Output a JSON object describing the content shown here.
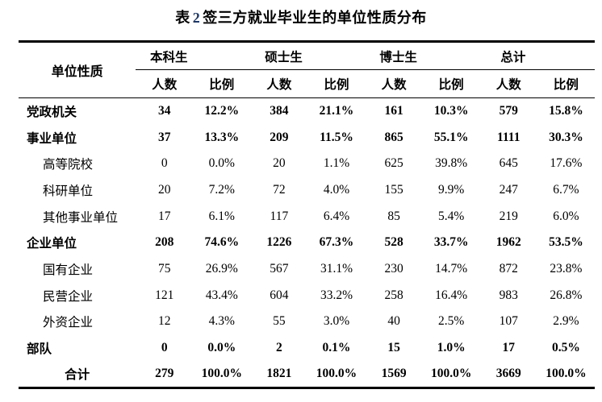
{
  "title": {
    "prefix": "表",
    "number": "2",
    "text": "签三方就业毕业生的单位性质分布"
  },
  "colors": {
    "title_number": "#1f3864",
    "text": "#000000",
    "rule": "#000000"
  },
  "table": {
    "row_header": "单位性质",
    "groups": [
      {
        "label": "本科生"
      },
      {
        "label": "硕士生"
      },
      {
        "label": "博士生"
      },
      {
        "label": "总计"
      }
    ],
    "sub_headers": [
      "人数",
      "比例"
    ],
    "rows": [
      {
        "label": "党政机关",
        "level": "main",
        "cells": [
          "34",
          "12.2%",
          "384",
          "21.1%",
          "161",
          "10.3%",
          "579",
          "15.8%"
        ]
      },
      {
        "label": "事业单位",
        "level": "main",
        "cells": [
          "37",
          "13.3%",
          "209",
          "11.5%",
          "865",
          "55.1%",
          "1111",
          "30.3%"
        ]
      },
      {
        "label": "高等院校",
        "level": "sub",
        "cells": [
          "0",
          "0.0%",
          "20",
          "1.1%",
          "625",
          "39.8%",
          "645",
          "17.6%"
        ]
      },
      {
        "label": "科研单位",
        "level": "sub",
        "cells": [
          "20",
          "7.2%",
          "72",
          "4.0%",
          "155",
          "9.9%",
          "247",
          "6.7%"
        ]
      },
      {
        "label": "其他事业单位",
        "level": "sub",
        "cells": [
          "17",
          "6.1%",
          "117",
          "6.4%",
          "85",
          "5.4%",
          "219",
          "6.0%"
        ]
      },
      {
        "label": "企业单位",
        "level": "main",
        "cells": [
          "208",
          "74.6%",
          "1226",
          "67.3%",
          "528",
          "33.7%",
          "1962",
          "53.5%"
        ]
      },
      {
        "label": "国有企业",
        "level": "sub",
        "cells": [
          "75",
          "26.9%",
          "567",
          "31.1%",
          "230",
          "14.7%",
          "872",
          "23.8%"
        ]
      },
      {
        "label": "民营企业",
        "level": "sub",
        "cells": [
          "121",
          "43.4%",
          "604",
          "33.2%",
          "258",
          "16.4%",
          "983",
          "26.8%"
        ]
      },
      {
        "label": "外资企业",
        "level": "sub",
        "cells": [
          "12",
          "4.3%",
          "55",
          "3.0%",
          "40",
          "2.5%",
          "107",
          "2.9%"
        ]
      },
      {
        "label": "部队",
        "level": "main",
        "cells": [
          "0",
          "0.0%",
          "2",
          "0.1%",
          "15",
          "1.0%",
          "17",
          "0.5%"
        ]
      },
      {
        "label": "合计",
        "level": "total",
        "cells": [
          "279",
          "100.0%",
          "1821",
          "100.0%",
          "1569",
          "100.0%",
          "3669",
          "100.0%"
        ]
      }
    ]
  }
}
